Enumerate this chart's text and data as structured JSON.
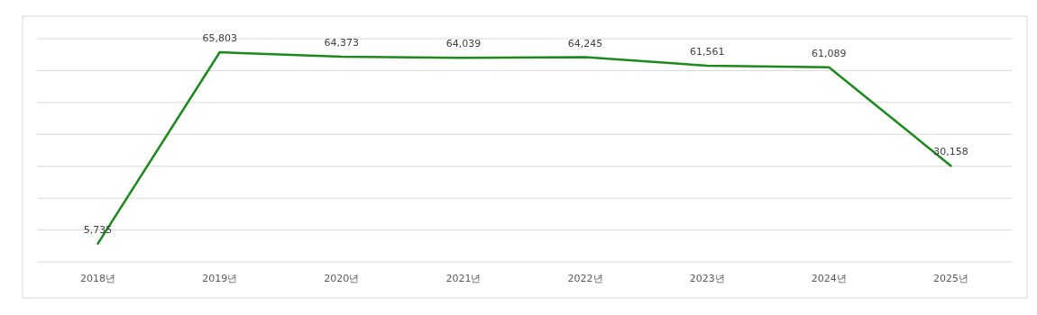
{
  "chart_data": {
    "type": "line",
    "categories": [
      "2018년",
      "2019년",
      "2020년",
      "2021년",
      "2022년",
      "2023년",
      "2024년",
      "2025년"
    ],
    "series": [
      {
        "color": "#1a8a1a",
        "values": [
          5735,
          65803,
          64373,
          64039,
          64245,
          61561,
          61089,
          30158
        ],
        "value_labels": [
          "5,735",
          "65,803",
          "64,373",
          "64,039",
          "64,245",
          "61,561",
          "61,089",
          "30,158"
        ]
      }
    ],
    "grid": true,
    "tick_labels": "x",
    "marker": "none",
    "line_style": "solid"
  }
}
